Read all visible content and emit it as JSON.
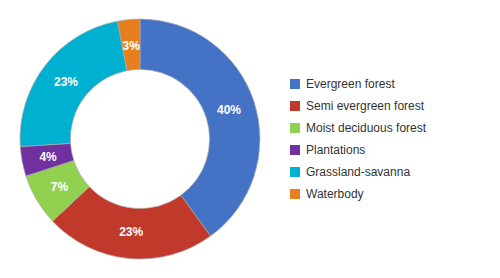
{
  "chart_data": {
    "type": "pie",
    "categories": [
      "Evergreen forest",
      "Semi evergreen forest",
      "Moist deciduous forest",
      "Plantations",
      "Grassland-savanna",
      "Waterbody"
    ],
    "values": [
      40,
      23,
      7,
      4,
      23,
      3
    ],
    "value_labels": [
      "40%",
      "23%",
      "7%",
      "4%",
      "23%",
      "3%"
    ],
    "colors": [
      "#4472C4",
      "#C0392B",
      "#92D050",
      "#7030A0",
      "#00B0D0",
      "#E87F1E"
    ],
    "data_labels": true,
    "legend": "right"
  }
}
